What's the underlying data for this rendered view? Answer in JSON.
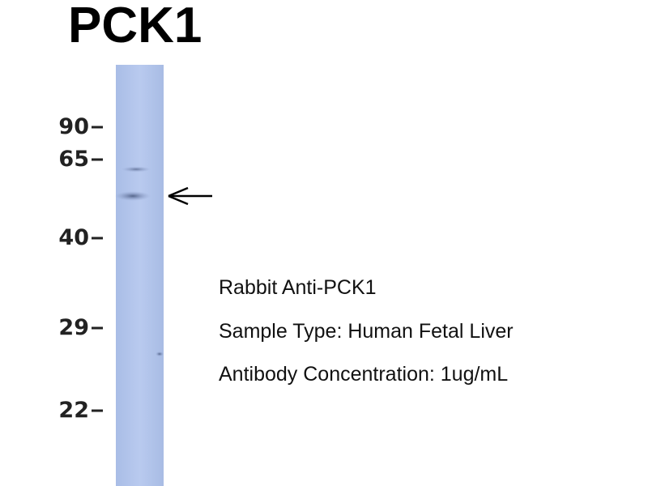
{
  "title": "PCK1",
  "markers": [
    "90",
    "65",
    "40",
    "29",
    "22"
  ],
  "annotation": [
    "Rabbit Anti-PCK1",
    "Sample Type: Human Fetal Liver",
    "Antibody Concentration: 1ug/mL"
  ]
}
